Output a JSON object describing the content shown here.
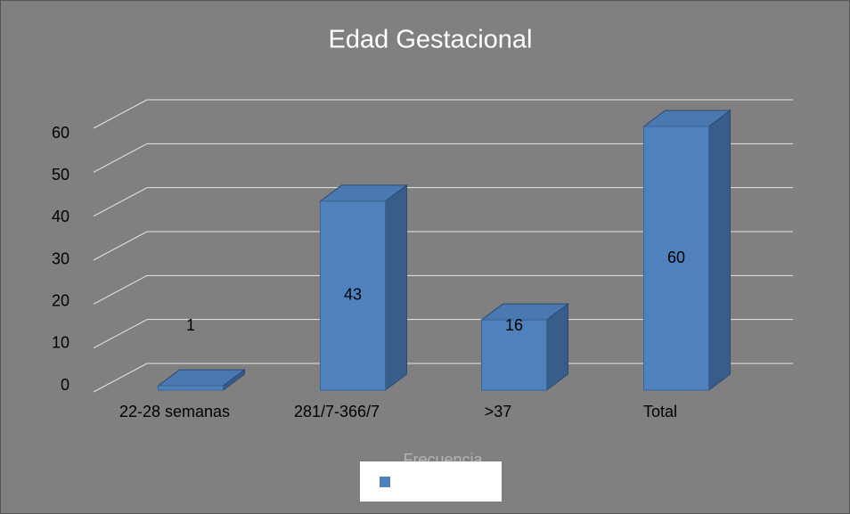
{
  "chart_data": {
    "type": "bar3d",
    "title": "Edad Gestacional",
    "categories": [
      "22-28 semanas",
      "281/7-366/7",
      ">37",
      "Total"
    ],
    "series": [
      {
        "name": "Frecuencia",
        "color": "#4f81bd",
        "values": [
          1,
          43,
          16,
          60
        ]
      }
    ],
    "ylim": [
      0,
      60
    ],
    "yticks": [
      0,
      10,
      20,
      30,
      40,
      50,
      60
    ],
    "grid": true
  }
}
